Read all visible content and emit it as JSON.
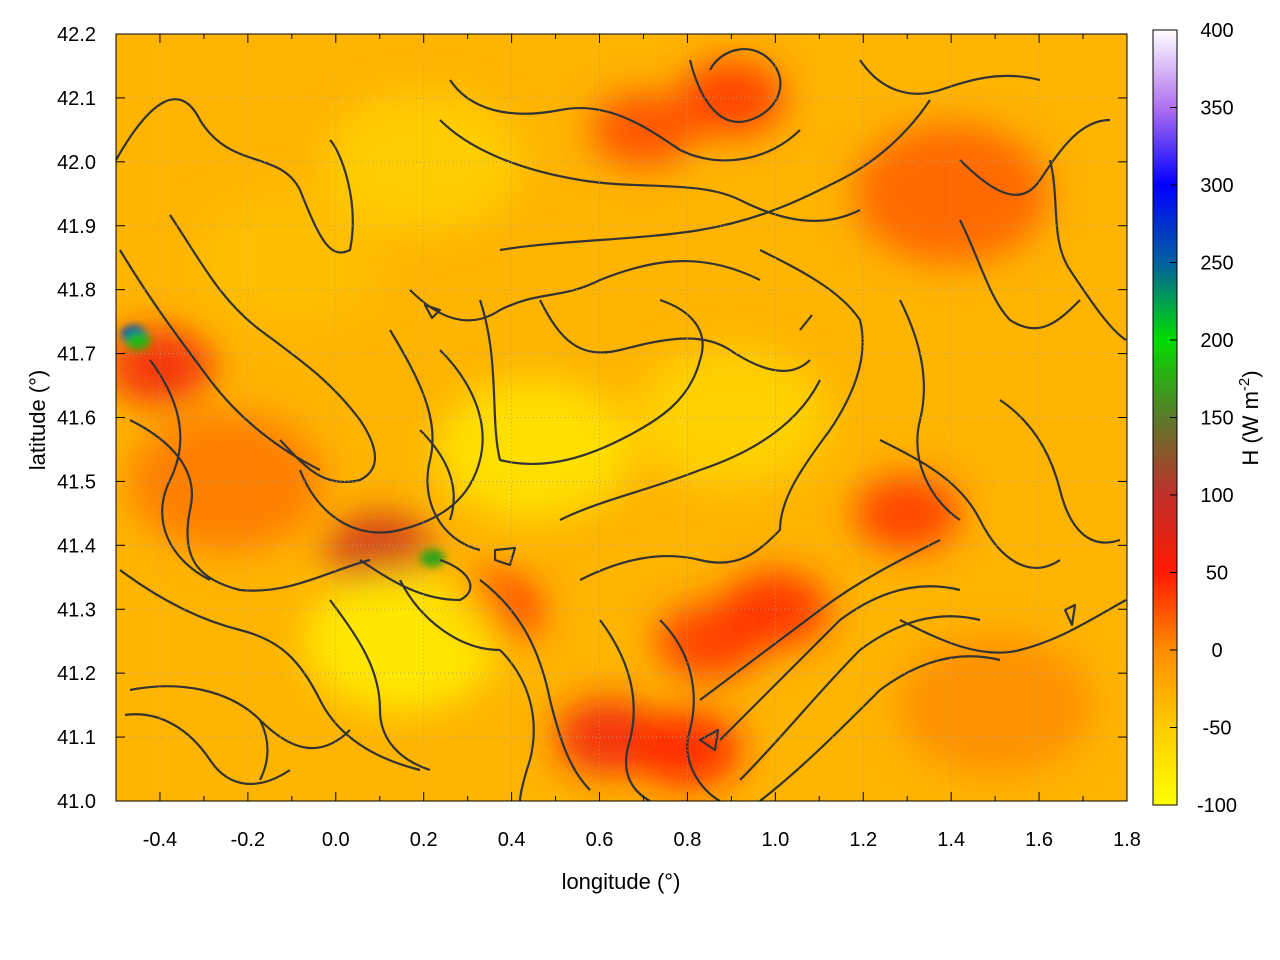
{
  "chart_data": {
    "type": "heatmap",
    "xlabel": "longitude (°)",
    "ylabel": "latitude (°)",
    "colorbar_label_main": "H (W m",
    "colorbar_label_sup": "-2",
    "colorbar_label_close": ")",
    "xlim": [
      -0.5,
      1.8
    ],
    "ylim": [
      41.0,
      42.2
    ],
    "clim": [
      -100,
      400
    ],
    "xticks": [
      -0.4,
      -0.2,
      0.0,
      0.2,
      0.4,
      0.6,
      0.8,
      1.0,
      1.2,
      1.4,
      1.6,
      1.8
    ],
    "xtick_labels": [
      "-0.4",
      "-0.2",
      "0.0",
      "0.2",
      "0.4",
      "0.6",
      "0.8",
      "1.0",
      "1.2",
      "1.4",
      "1.6",
      "1.8"
    ],
    "yticks": [
      41.0,
      41.1,
      41.2,
      41.3,
      41.4,
      41.5,
      41.6,
      41.7,
      41.8,
      41.9,
      42.0,
      42.1,
      42.2
    ],
    "ytick_labels": [
      "41.0",
      "41.1",
      "41.2",
      "41.3",
      "41.4",
      "41.5",
      "41.6",
      "41.7",
      "41.8",
      "41.9",
      "42.0",
      "42.1",
      "42.2"
    ],
    "cticks": [
      -100,
      -50,
      0,
      50,
      100,
      150,
      200,
      250,
      300,
      350,
      400
    ],
    "ctick_labels": [
      "-100",
      "-50",
      "0",
      "50",
      "100",
      "150",
      "200",
      "250",
      "300",
      "350",
      "400"
    ],
    "colormap": [
      {
        "value": -100,
        "color": "#ffff00"
      },
      {
        "value": -50,
        "color": "#ffcc00"
      },
      {
        "value": 0,
        "color": "#ff8c00"
      },
      {
        "value": 50,
        "color": "#ff1a00"
      },
      {
        "value": 100,
        "color": "#c0302a"
      },
      {
        "value": 150,
        "color": "#5a7a2a"
      },
      {
        "value": 200,
        "color": "#00dd00"
      },
      {
        "value": 250,
        "color": "#0060a0"
      },
      {
        "value": 300,
        "color": "#0000ff"
      },
      {
        "value": 350,
        "color": "#b070f0"
      },
      {
        "value": 400,
        "color": "#ffffff"
      }
    ],
    "grid": true,
    "contours": true,
    "regions": [
      {
        "lon": -0.46,
        "lat": 41.73,
        "H": 260
      },
      {
        "lon": -0.45,
        "lat": 41.72,
        "H": 180
      },
      {
        "lon": -0.4,
        "lat": 41.68,
        "H": 60
      },
      {
        "lon": -0.25,
        "lat": 41.5,
        "H": 10
      },
      {
        "lon": -0.1,
        "lat": 41.85,
        "H": -40
      },
      {
        "lon": 0.22,
        "lat": 41.38,
        "H": 170
      },
      {
        "lon": 0.1,
        "lat": 41.39,
        "H": 90
      },
      {
        "lon": 0.35,
        "lat": 41.3,
        "H": 40
      },
      {
        "lon": 0.62,
        "lat": 41.1,
        "H": 60
      },
      {
        "lon": 0.8,
        "lat": 41.08,
        "H": 50
      },
      {
        "lon": 0.85,
        "lat": 41.25,
        "H": 40
      },
      {
        "lon": 1.0,
        "lat": 41.3,
        "H": 45
      },
      {
        "lon": 1.3,
        "lat": 41.45,
        "H": 40
      },
      {
        "lon": 0.7,
        "lat": 42.05,
        "H": 30
      },
      {
        "lon": 0.9,
        "lat": 42.1,
        "H": 40
      },
      {
        "lon": 1.4,
        "lat": 41.95,
        "H": 20
      },
      {
        "lon": 1.5,
        "lat": 41.15,
        "H": 0
      },
      {
        "lon": 0.45,
        "lat": 41.55,
        "H": -75
      },
      {
        "lon": 0.15,
        "lat": 41.25,
        "H": -85
      },
      {
        "lon": 0.9,
        "lat": 41.6,
        "H": -60
      },
      {
        "lon": 0.2,
        "lat": 42.0,
        "H": -55
      }
    ]
  }
}
